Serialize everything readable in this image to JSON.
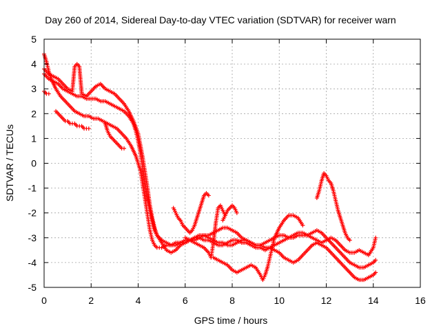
{
  "chart_data": {
    "type": "scatter",
    "title": "Day 260 of 2014, Sidereal Day-to-day VTEC variation (SDTVAR) for receiver warn",
    "xlabel": "GPS time / hours",
    "ylabel": "SDTVAR / TECUs",
    "xlim": [
      0,
      16
    ],
    "ylim": [
      -5,
      5
    ],
    "xticks": [
      0,
      2,
      4,
      6,
      8,
      10,
      12,
      14,
      16
    ],
    "yticks": [
      -5,
      -4,
      -3,
      -2,
      -1,
      0,
      1,
      2,
      3,
      4,
      5
    ],
    "grid": true,
    "marker": "+",
    "color": "#ff0000",
    "series": [
      {
        "x": [
          0.0,
          0.1,
          0.2,
          0.3,
          0.5,
          0.7,
          0.9,
          1.1,
          1.3,
          1.5,
          1.7,
          1.9,
          2.1,
          2.3,
          2.5,
          2.7,
          2.9,
          3.1,
          3.3,
          3.5,
          3.7,
          3.9,
          4.0,
          4.1,
          4.2,
          4.3,
          4.4,
          4.5,
          4.6,
          4.7,
          4.8,
          4.9,
          5.0,
          5.2,
          5.4,
          5.6,
          5.8,
          6.0,
          6.2,
          6.4,
          6.6,
          6.8,
          7.0,
          7.2,
          7.4,
          7.6,
          7.8,
          8.0,
          8.2,
          8.4,
          8.6,
          8.8,
          9.0,
          9.2,
          9.4,
          9.6,
          9.8,
          10.0,
          10.2,
          10.4,
          10.6,
          10.8,
          11.0,
          11.2,
          11.4,
          11.6,
          11.8,
          12.0,
          12.2,
          12.4,
          12.6,
          12.8,
          13.0,
          13.2,
          13.4,
          13.6,
          13.8,
          14.0,
          14.1
        ],
        "y": [
          4.4,
          4.1,
          3.7,
          3.4,
          3.0,
          2.7,
          2.5,
          2.3,
          2.1,
          2.0,
          1.9,
          1.9,
          1.8,
          1.8,
          1.7,
          1.6,
          1.5,
          1.4,
          1.2,
          1.0,
          0.7,
          0.3,
          0.0,
          -0.3,
          -0.9,
          -1.5,
          -2.1,
          -2.7,
          -3.1,
          -3.3,
          -3.4,
          -3.4,
          -3.4,
          -3.3,
          -3.3,
          -3.2,
          -3.2,
          -3.1,
          -3.1,
          -3.0,
          -3.0,
          -3.1,
          -3.1,
          -3.2,
          -3.3,
          -3.3,
          -3.2,
          -3.1,
          -3.1,
          -3.2,
          -3.2,
          -3.3,
          -3.4,
          -3.4,
          -3.5,
          -3.4,
          -3.3,
          -3.2,
          -3.1,
          -3.0,
          -2.9,
          -2.8,
          -2.8,
          -2.9,
          -3.0,
          -3.1,
          -3.2,
          -3.1,
          -3.0,
          -3.1,
          -3.3,
          -3.5,
          -3.6,
          -3.6,
          -3.5,
          -3.6,
          -3.7,
          -3.4,
          -3.0
        ]
      },
      {
        "x": [
          0.0,
          0.1,
          0.2,
          0.4,
          0.6,
          0.8,
          1.0,
          1.2,
          1.4,
          1.6,
          1.8,
          2.0,
          2.2,
          2.4,
          2.6,
          2.8,
          3.0,
          3.2,
          3.4,
          3.6,
          3.8,
          3.9,
          4.0,
          4.1,
          4.2,
          4.3,
          4.4,
          4.5,
          4.6,
          4.7,
          4.8,
          5.0,
          5.2,
          5.4,
          5.6,
          5.8,
          6.0,
          6.2,
          6.4,
          6.6,
          6.8,
          7.0,
          7.2,
          7.4,
          7.6,
          7.8,
          8.0,
          8.2,
          8.4,
          8.6,
          8.8,
          9.0,
          9.2,
          9.4,
          9.6,
          9.8,
          10.0,
          10.2,
          10.4,
          10.6,
          10.8,
          11.0,
          11.2,
          11.4,
          11.6,
          11.8,
          12.0,
          12.2,
          12.4,
          12.6,
          12.8,
          13.0,
          13.2,
          13.4,
          13.6,
          13.8,
          14.0,
          14.1
        ],
        "y": [
          3.6,
          3.5,
          3.4,
          3.3,
          3.2,
          3.0,
          2.9,
          2.8,
          2.7,
          2.7,
          2.6,
          2.6,
          2.6,
          2.5,
          2.5,
          2.4,
          2.3,
          2.2,
          2.1,
          1.9,
          1.6,
          1.3,
          0.9,
          0.4,
          -0.2,
          -0.8,
          -1.4,
          -1.9,
          -2.3,
          -2.7,
          -2.9,
          -3.1,
          -3.2,
          -3.3,
          -3.3,
          -3.2,
          -3.2,
          -3.1,
          -3.1,
          -3.0,
          -2.9,
          -2.9,
          -2.8,
          -2.7,
          -2.6,
          -2.6,
          -2.7,
          -2.8,
          -3.0,
          -3.1,
          -3.2,
          -3.3,
          -3.3,
          -3.2,
          -3.1,
          -3.0,
          -2.9,
          -2.9,
          -3.0,
          -3.0,
          -2.9,
          -2.9,
          -2.9,
          -2.8,
          -2.7,
          -2.8,
          -3.0,
          -3.2,
          -3.4,
          -3.6,
          -3.8,
          -4.0,
          -4.1,
          -4.2,
          -4.2,
          -4.1,
          -4.0,
          -3.9
        ]
      },
      {
        "x": [
          0.0,
          0.2,
          0.4,
          0.6,
          0.8,
          1.0,
          1.2,
          1.3,
          1.4,
          1.5,
          1.6,
          1.8,
          2.0,
          2.2,
          2.4,
          2.6,
          2.8,
          3.0,
          3.2,
          3.4,
          3.6,
          3.8,
          4.0,
          4.1,
          4.2,
          4.3,
          4.4,
          4.5,
          4.6,
          4.7,
          4.8,
          5.0,
          5.2,
          5.4,
          5.6,
          5.8,
          6.0,
          6.2,
          6.4,
          6.6,
          6.8,
          7.0,
          7.2,
          7.4,
          7.6,
          7.8,
          8.0,
          8.2,
          8.4,
          8.6,
          8.8,
          9.0,
          9.2,
          9.4,
          9.6,
          9.8,
          10.0,
          10.2,
          10.4,
          10.6,
          10.8,
          11.0,
          11.2,
          11.4,
          11.6,
          11.8,
          12.0,
          12.2,
          12.4,
          12.6,
          12.8,
          13.0,
          13.2,
          13.4,
          13.6,
          13.8,
          14.0,
          14.1
        ],
        "y": [
          3.8,
          3.6,
          3.5,
          3.4,
          3.2,
          3.0,
          2.9,
          3.9,
          4.0,
          3.9,
          2.8,
          2.7,
          2.9,
          3.1,
          3.2,
          3.0,
          2.9,
          2.8,
          2.6,
          2.4,
          2.1,
          1.7,
          1.2,
          0.7,
          0.2,
          -0.4,
          -1.0,
          -1.7,
          -2.2,
          -2.6,
          -2.9,
          -3.2,
          -3.5,
          -3.6,
          -3.5,
          -3.3,
          -3.2,
          -3.1,
          -3.0,
          -2.9,
          -2.9,
          -3.0,
          -3.1,
          -3.2,
          -3.2,
          -3.3,
          -3.3,
          -3.2,
          -3.1,
          -3.1,
          -3.2,
          -3.3,
          -3.3,
          -3.4,
          -3.4,
          -3.5,
          -3.6,
          -3.8,
          -3.9,
          -4.0,
          -3.9,
          -3.7,
          -3.5,
          -3.3,
          -3.2,
          -3.3,
          -3.4,
          -3.6,
          -3.8,
          -4.0,
          -4.2,
          -4.4,
          -4.6,
          -4.7,
          -4.7,
          -4.6,
          -4.5,
          -4.4
        ]
      },
      {
        "x": [
          0.0,
          0.1,
          0.2
        ],
        "y": [
          2.9,
          2.8,
          2.8
        ]
      },
      {
        "x": [
          0.5,
          0.6,
          0.7,
          0.8,
          0.9,
          1.0,
          1.1,
          1.2,
          1.3,
          1.4,
          1.5,
          1.6,
          1.7,
          1.8,
          1.9
        ],
        "y": [
          2.1,
          2.0,
          1.9,
          1.8,
          1.7,
          1.7,
          1.6,
          1.6,
          1.6,
          1.5,
          1.5,
          1.5,
          1.4,
          1.4,
          1.4
        ]
      },
      {
        "x": [
          2.6,
          2.7,
          2.8,
          2.9,
          3.0,
          3.1,
          3.2,
          3.3,
          3.4
        ],
        "y": [
          1.6,
          1.3,
          1.1,
          1.0,
          0.9,
          0.8,
          0.7,
          0.6,
          0.6
        ]
      },
      {
        "x": [
          5.5,
          5.6,
          5.7,
          5.8,
          5.9,
          6.0,
          6.1,
          6.2,
          6.3,
          6.4,
          6.5,
          6.6,
          6.7,
          6.8,
          6.9,
          7.0
        ],
        "y": [
          -1.8,
          -2.0,
          -2.2,
          -2.3,
          -2.5,
          -2.6,
          -2.7,
          -2.8,
          -2.7,
          -2.5,
          -2.2,
          -1.9,
          -1.6,
          -1.3,
          -1.2,
          -1.3
        ]
      },
      {
        "x": [
          6.0,
          6.2,
          6.4,
          6.6,
          6.8,
          7.0,
          7.1,
          7.2,
          7.3,
          7.4,
          7.5,
          7.6,
          7.7
        ],
        "y": [
          -3.0,
          -3.1,
          -3.2,
          -3.3,
          -3.4,
          -3.6,
          -3.8,
          -3.2,
          -2.4,
          -1.8,
          -1.7,
          -1.9,
          -2.1
        ]
      },
      {
        "x": [
          7.2,
          7.4,
          7.6,
          7.8,
          8.0,
          8.2,
          8.4,
          8.6,
          8.8,
          9.0,
          9.2,
          9.3,
          9.4,
          9.5,
          9.6,
          9.7,
          9.8,
          10.0,
          10.2,
          10.4,
          10.6,
          10.8,
          11.0
        ],
        "y": [
          -3.8,
          -3.9,
          -4.0,
          -4.1,
          -4.3,
          -4.4,
          -4.3,
          -4.2,
          -4.1,
          -4.2,
          -4.5,
          -4.7,
          -4.5,
          -4.2,
          -3.8,
          -3.4,
          -3.0,
          -2.6,
          -2.3,
          -2.1,
          -2.1,
          -2.2,
          -2.5
        ]
      },
      {
        "x": [
          7.6,
          7.7,
          7.8,
          7.9,
          8.0,
          8.1,
          8.2
        ],
        "y": [
          -2.3,
          -2.1,
          -1.9,
          -1.8,
          -1.7,
          -1.8,
          -2.0
        ]
      },
      {
        "x": [
          11.6,
          11.7,
          11.8,
          11.9,
          12.0,
          12.1,
          12.2,
          12.3,
          12.4,
          12.5,
          12.6,
          12.7,
          12.8,
          12.9,
          13.0
        ],
        "y": [
          -1.4,
          -1.1,
          -0.7,
          -0.4,
          -0.5,
          -0.7,
          -0.8,
          -1.1,
          -1.5,
          -1.9,
          -2.2,
          -2.5,
          -2.8,
          -3.0,
          -3.1
        ]
      }
    ]
  }
}
